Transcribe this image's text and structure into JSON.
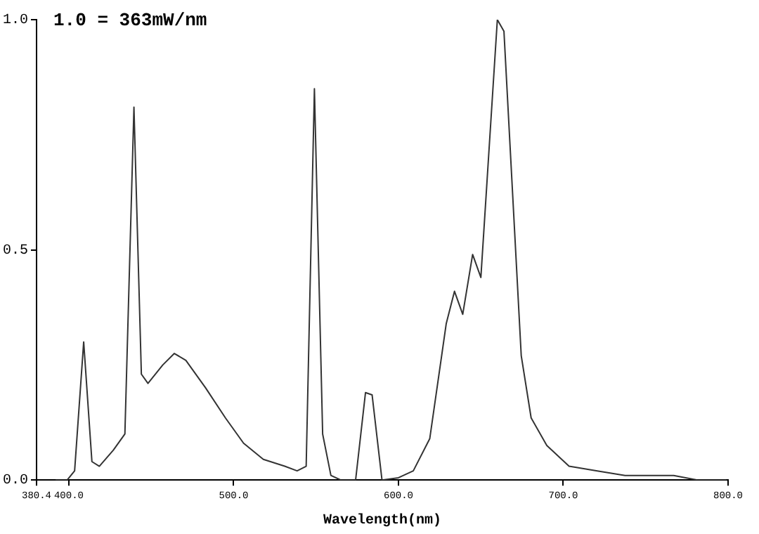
{
  "chart_data": {
    "type": "line",
    "xlabel": "Wavelength(nm)",
    "annotations": [
      "1.0 = 363mW/nm"
    ],
    "xlim": [
      380.4,
      800
    ],
    "ylim": [
      0,
      1
    ],
    "xticks": [
      380.4,
      {
        "value": 400,
        "label": "400.0"
      },
      {
        "value": 500,
        "label": "500.0"
      },
      {
        "value": 600,
        "label": "600.0"
      },
      {
        "value": 700,
        "label": "700.0"
      },
      {
        "value": 800,
        "label": "800.0"
      }
    ],
    "yticks": [
      {
        "value": 0,
        "label": "0.0"
      },
      {
        "value": 0.5,
        "label": "0.5"
      },
      {
        "value": 1,
        "label": "1.0"
      }
    ],
    "grid": false,
    "legend": false,
    "marker": "none",
    "line_style": "solid",
    "series": [
      {
        "color": "#333333",
        "x": [
          392,
          399,
          403.5,
          409,
          414,
          418.5,
          427,
          434,
          439.5,
          444,
          448,
          457,
          464,
          471,
          483,
          495,
          506,
          518,
          531,
          538.5,
          544,
          549,
          554,
          559,
          565,
          574,
          580,
          584,
          590,
          600,
          609,
          619,
          629,
          634,
          639,
          645,
          650,
          660,
          664,
          674.5,
          680.5,
          690,
          703.5,
          720,
          737.5,
          753.5,
          767,
          781.5,
          799
        ],
        "values": [
          0,
          0,
          0.02,
          0.3,
          0.04,
          0.03,
          0.065,
          0.1,
          0.81,
          0.23,
          0.21,
          0.25,
          0.275,
          0.26,
          0.2,
          0.135,
          0.08,
          0.045,
          0.03,
          0.02,
          0.03,
          0.85,
          0.1,
          0.01,
          0,
          0,
          0.19,
          0.185,
          0,
          0.005,
          0.02,
          0.09,
          0.34,
          0.41,
          0.36,
          0.49,
          0.44,
          1.0,
          0.975,
          0.27,
          0.135,
          0.075,
          0.03,
          0.02,
          0.01,
          0.01,
          0.01,
          0,
          0
        ]
      }
    ]
  }
}
